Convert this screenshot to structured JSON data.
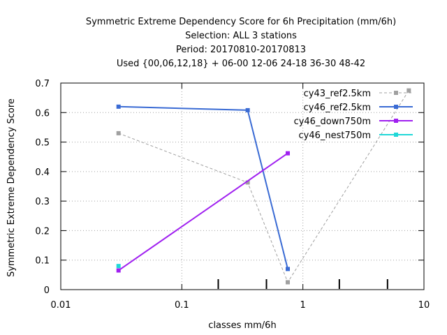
{
  "chart_data": {
    "type": "line",
    "title_lines": [
      "Symmetric Extreme Dependency Score  for 6h Precipitation (mm/6h)",
      "Selection: ALL      3 stations",
      "Period: 20170810-20170813",
      "Used {00,06,12,18} + 06-00 12-06 24-18 36-30 48-42"
    ],
    "xlabel": "classes mm/6h",
    "ylabel": "Symmetric Extreme Dependency Score",
    "x_scale": "log",
    "xlim": [
      0.01,
      10
    ],
    "ylim": [
      0,
      0.7
    ],
    "x_ticks": [
      0.01,
      0.1,
      1,
      10
    ],
    "x_tick_labels": [
      "0.01",
      "0.1",
      "1",
      "10"
    ],
    "y_ticks": [
      0,
      0.1,
      0.2,
      0.3,
      0.4,
      0.5,
      0.6,
      0.7
    ],
    "y_tick_labels": [
      "0",
      "0.1",
      "0.2",
      "0.3",
      "0.4",
      "0.5",
      "0.6",
      "0.7"
    ],
    "x_minor_marks": [
      0.2,
      0.5,
      2,
      5
    ],
    "grid": true,
    "legend_position": "top-right",
    "series": [
      {
        "name": "cy43_ref2.5km",
        "color": "#a0a0a0",
        "dashed": true,
        "x": [
          0.03,
          0.35,
          0.75,
          7.5
        ],
        "y": [
          0.53,
          0.363,
          0.025,
          0.675
        ]
      },
      {
        "name": "cy46_ref2.5km",
        "color": "#3a6bd4",
        "dashed": false,
        "x": [
          0.03,
          0.35,
          0.75
        ],
        "y": [
          0.62,
          0.608,
          0.07
        ]
      },
      {
        "name": "cy46_down750m",
        "color": "#a020f0",
        "dashed": false,
        "x": [
          0.03,
          0.75
        ],
        "y": [
          0.065,
          0.462
        ]
      },
      {
        "name": "cy46_nest750m",
        "color": "#20d8d8",
        "dashed": false,
        "x": [
          0.03
        ],
        "y": [
          0.08
        ]
      }
    ]
  }
}
